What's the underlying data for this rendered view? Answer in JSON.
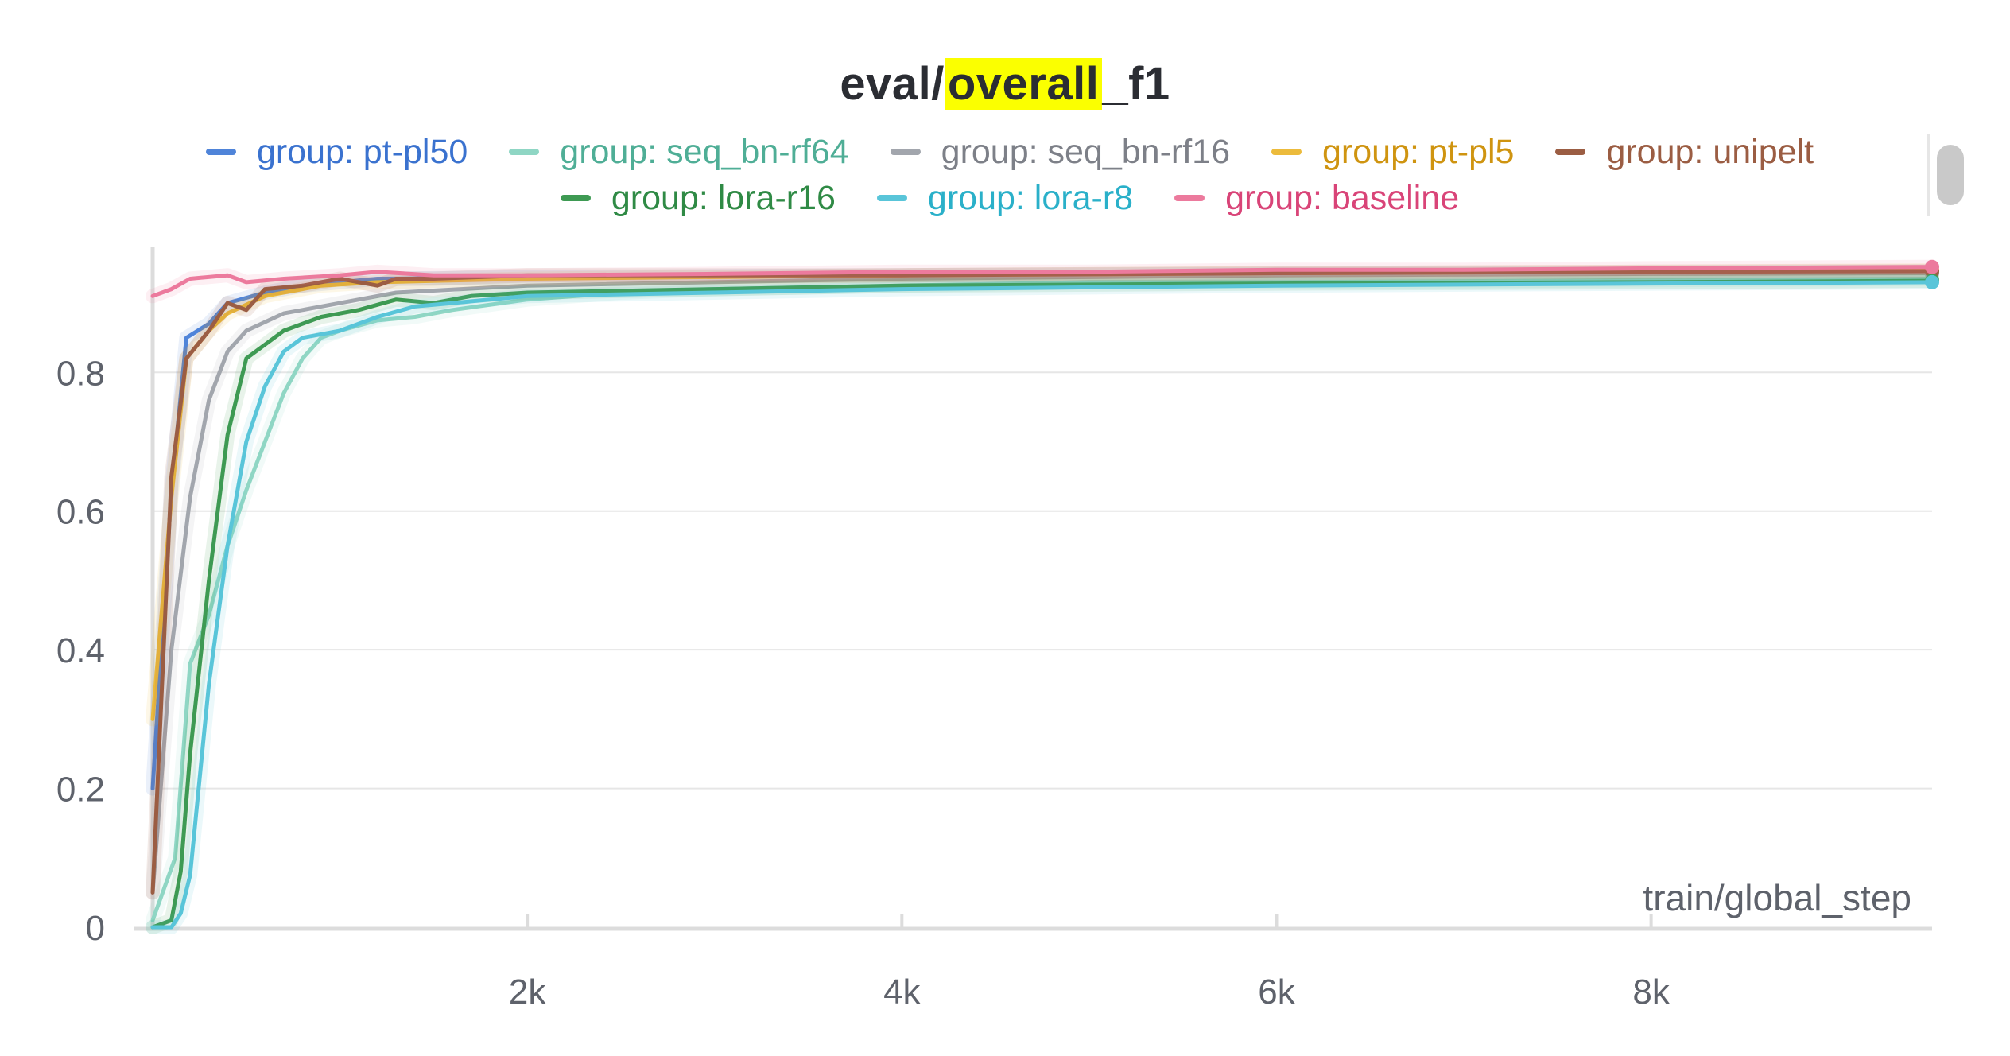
{
  "title_parts": {
    "prefix": "eval/",
    "highlight": "overall",
    "suffix": "_f1"
  },
  "chart_data": {
    "type": "line",
    "title": "eval/overall_f1",
    "xlabel": "train/global_step",
    "ylabel": "",
    "xlim": [
      0,
      9500
    ],
    "ylim": [
      0,
      0.97
    ],
    "x_ticks": [
      {
        "value": 2000,
        "label": "2k"
      },
      {
        "value": 4000,
        "label": "4k"
      },
      {
        "value": 6000,
        "label": "6k"
      },
      {
        "value": 8000,
        "label": "8k"
      }
    ],
    "y_ticks": [
      {
        "value": 0,
        "label": "0"
      },
      {
        "value": 0.2,
        "label": "0.2"
      },
      {
        "value": 0.4,
        "label": "0.4"
      },
      {
        "value": 0.6,
        "label": "0.6"
      },
      {
        "value": 0.8,
        "label": "0.8"
      }
    ],
    "grid": "horizontal",
    "legend": "top",
    "series": [
      {
        "name": "group: pt-pl50",
        "color": "#4f84d9",
        "text_color": "#3a72cf",
        "points": [
          [
            0,
            0.2
          ],
          [
            100,
            0.63
          ],
          [
            180,
            0.85
          ],
          [
            300,
            0.87
          ],
          [
            400,
            0.9
          ],
          [
            600,
            0.915
          ],
          [
            800,
            0.925
          ],
          [
            1200,
            0.935
          ],
          [
            2000,
            0.937
          ],
          [
            4000,
            0.94
          ],
          [
            6000,
            0.942
          ],
          [
            8000,
            0.944
          ],
          [
            9500,
            0.945
          ]
        ]
      },
      {
        "name": "group: seq_bn-rf64",
        "color": "#8fd6c4",
        "text_color": "#4fae96",
        "points": [
          [
            0,
            0.01
          ],
          [
            120,
            0.1
          ],
          [
            200,
            0.38
          ],
          [
            300,
            0.45
          ],
          [
            400,
            0.55
          ],
          [
            500,
            0.63
          ],
          [
            600,
            0.7
          ],
          [
            700,
            0.77
          ],
          [
            800,
            0.82
          ],
          [
            900,
            0.85
          ],
          [
            1000,
            0.86
          ],
          [
            1200,
            0.875
          ],
          [
            1400,
            0.88
          ],
          [
            1600,
            0.89
          ],
          [
            2000,
            0.905
          ],
          [
            2500,
            0.915
          ],
          [
            3000,
            0.92
          ],
          [
            4000,
            0.925
          ],
          [
            5000,
            0.93
          ],
          [
            6000,
            0.93
          ],
          [
            8000,
            0.933
          ],
          [
            9500,
            0.935
          ]
        ]
      },
      {
        "name": "group: seq_bn-rf16",
        "color": "#a2a6ad",
        "text_color": "#7d8088",
        "points": [
          [
            0,
            0.05
          ],
          [
            100,
            0.4
          ],
          [
            200,
            0.62
          ],
          [
            300,
            0.76
          ],
          [
            400,
            0.83
          ],
          [
            500,
            0.86
          ],
          [
            700,
            0.885
          ],
          [
            1000,
            0.9
          ],
          [
            1300,
            0.915
          ],
          [
            2000,
            0.925
          ],
          [
            4000,
            0.935
          ],
          [
            6000,
            0.94
          ],
          [
            8000,
            0.942
          ],
          [
            9500,
            0.943
          ]
        ]
      },
      {
        "name": "group: pt-pl5",
        "color": "#ecbb3c",
        "text_color": "#cf9410",
        "points": [
          [
            0,
            0.3
          ],
          [
            100,
            0.62
          ],
          [
            180,
            0.82
          ],
          [
            300,
            0.86
          ],
          [
            400,
            0.885
          ],
          [
            600,
            0.91
          ],
          [
            900,
            0.925
          ],
          [
            1200,
            0.93
          ],
          [
            2000,
            0.935
          ],
          [
            4000,
            0.94
          ],
          [
            6000,
            0.943
          ],
          [
            8000,
            0.945
          ],
          [
            9500,
            0.947
          ]
        ]
      },
      {
        "name": "group: unipelt",
        "color": "#9b5d43",
        "text_color": "#9b5d43",
        "points": [
          [
            0,
            0.05
          ],
          [
            100,
            0.65
          ],
          [
            180,
            0.82
          ],
          [
            300,
            0.86
          ],
          [
            400,
            0.9
          ],
          [
            500,
            0.89
          ],
          [
            600,
            0.92
          ],
          [
            800,
            0.925
          ],
          [
            1000,
            0.935
          ],
          [
            1200,
            0.925
          ],
          [
            1300,
            0.935
          ],
          [
            1500,
            0.935
          ],
          [
            2000,
            0.94
          ],
          [
            4000,
            0.94
          ],
          [
            6000,
            0.943
          ],
          [
            8000,
            0.945
          ],
          [
            9500,
            0.946
          ]
        ]
      },
      {
        "name": "group: lora-r16",
        "color": "#3e9a53",
        "text_color": "#2f8a45",
        "points": [
          [
            0,
            0.0
          ],
          [
            100,
            0.01
          ],
          [
            150,
            0.08
          ],
          [
            200,
            0.25
          ],
          [
            300,
            0.5
          ],
          [
            400,
            0.71
          ],
          [
            500,
            0.82
          ],
          [
            700,
            0.86
          ],
          [
            900,
            0.88
          ],
          [
            1100,
            0.89
          ],
          [
            1300,
            0.905
          ],
          [
            1500,
            0.9
          ],
          [
            1700,
            0.91
          ],
          [
            2000,
            0.915
          ],
          [
            3000,
            0.92
          ],
          [
            4000,
            0.925
          ],
          [
            6000,
            0.928
          ],
          [
            8000,
            0.93
          ],
          [
            9500,
            0.932
          ]
        ]
      },
      {
        "name": "group: lora-r8",
        "color": "#59c5d9",
        "text_color": "#2ab0c9",
        "points": [
          [
            0,
            0.0
          ],
          [
            100,
            0.0
          ],
          [
            150,
            0.02
          ],
          [
            200,
            0.075
          ],
          [
            300,
            0.35
          ],
          [
            400,
            0.55
          ],
          [
            500,
            0.7
          ],
          [
            600,
            0.78
          ],
          [
            700,
            0.83
          ],
          [
            800,
            0.85
          ],
          [
            1000,
            0.86
          ],
          [
            1200,
            0.88
          ],
          [
            1400,
            0.895
          ],
          [
            1600,
            0.9
          ],
          [
            2000,
            0.91
          ],
          [
            3000,
            0.915
          ],
          [
            4000,
            0.92
          ],
          [
            6000,
            0.925
          ],
          [
            8000,
            0.928
          ],
          [
            9500,
            0.93
          ]
        ]
      },
      {
        "name": "group: baseline",
        "color": "#ec7a9d",
        "text_color": "#d94478",
        "points": [
          [
            0,
            0.91
          ],
          [
            100,
            0.92
          ],
          [
            200,
            0.935
          ],
          [
            400,
            0.94
          ],
          [
            500,
            0.93
          ],
          [
            700,
            0.935
          ],
          [
            1000,
            0.94
          ],
          [
            1200,
            0.945
          ],
          [
            1500,
            0.94
          ],
          [
            2000,
            0.94
          ],
          [
            3000,
            0.942
          ],
          [
            4000,
            0.945
          ],
          [
            5000,
            0.945
          ],
          [
            6000,
            0.948
          ],
          [
            7000,
            0.948
          ],
          [
            8000,
            0.95
          ],
          [
            9500,
            0.952
          ]
        ]
      }
    ]
  }
}
